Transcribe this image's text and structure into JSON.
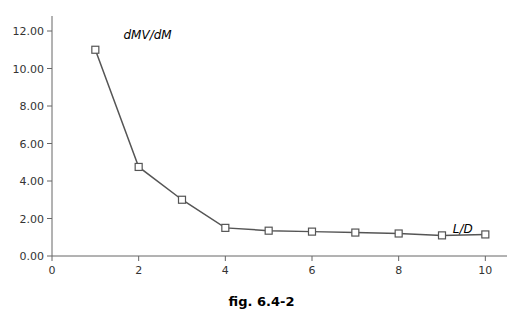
{
  "chart_data": {
    "type": "line",
    "x": [
      1,
      2,
      3,
      4,
      5,
      6,
      7,
      8,
      9,
      10
    ],
    "values": [
      11.0,
      4.75,
      3.0,
      1.5,
      1.35,
      1.3,
      1.25,
      1.2,
      1.1,
      1.15
    ],
    "color": "#555555",
    "marker": "square",
    "xlim": [
      0,
      10.5
    ],
    "ylim": [
      0,
      12.8
    ],
    "xticks": [
      0,
      2,
      4,
      6,
      8,
      10
    ],
    "yticks": [
      {
        "value": 0,
        "label": "0.00"
      },
      {
        "value": 2,
        "label": "2.00"
      },
      {
        "value": 4,
        "label": "4.00"
      },
      {
        "value": 6,
        "label": "6.00"
      },
      {
        "value": 8,
        "label": "8.00"
      },
      {
        "value": 10,
        "label": "10.00"
      },
      {
        "value": 12,
        "label": "12.00"
      }
    ],
    "grid": false,
    "annotations": [
      {
        "text": "dMV/dM",
        "x": 1.65,
        "y": 11.55
      },
      {
        "text": "L/D",
        "x": 9.25,
        "y": 1.22
      }
    ],
    "caption": "fig. 6.4-2"
  }
}
